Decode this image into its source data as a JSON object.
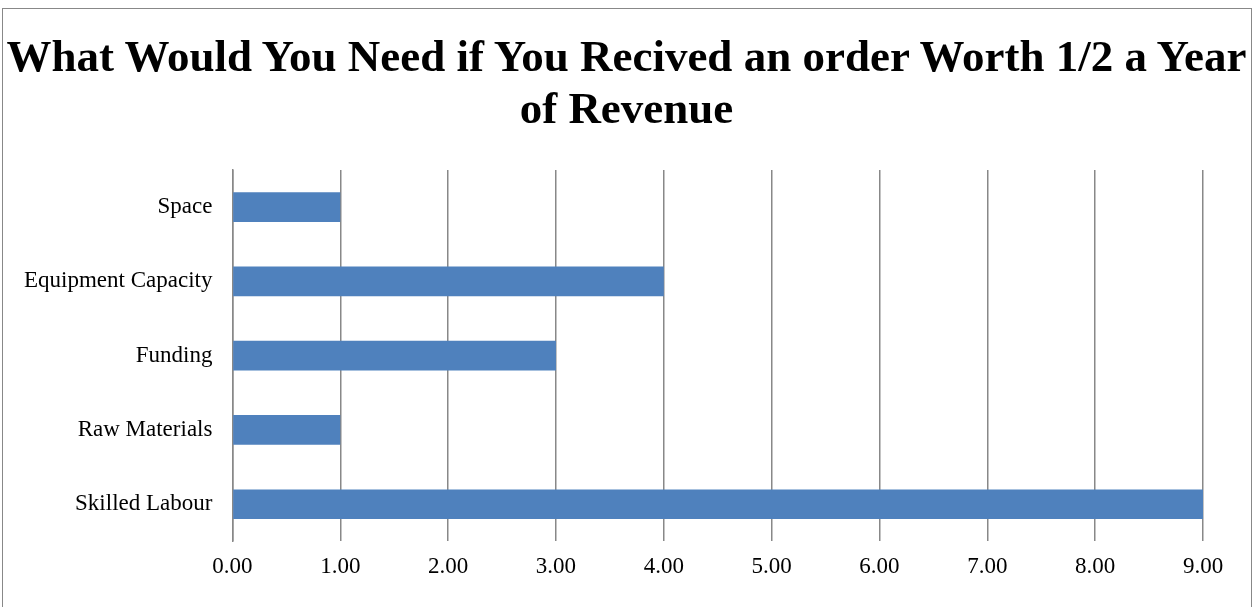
{
  "chart_data": {
    "type": "bar",
    "orientation": "horizontal",
    "title": "What Would You Need if You Recived an order Worth 1/2 a Year of Revenue",
    "categories": [
      "Space",
      "Equipment Capacity",
      "Funding",
      "Raw Materials",
      "Skilled Labour"
    ],
    "values": [
      1,
      4,
      3,
      1,
      9
    ],
    "color": "#4f81bd",
    "xlim": [
      0,
      9
    ],
    "xticks": [
      {
        "value": 0,
        "label": "0.00"
      },
      {
        "value": 1,
        "label": "1.00"
      },
      {
        "value": 2,
        "label": "2.00"
      },
      {
        "value": 3,
        "label": "3.00"
      },
      {
        "value": 4,
        "label": "4.00"
      },
      {
        "value": 5,
        "label": "5.00"
      },
      {
        "value": 6,
        "label": "6.00"
      },
      {
        "value": 7,
        "label": "7.00"
      },
      {
        "value": 8,
        "label": "8.00"
      },
      {
        "value": 9,
        "label": "9.00"
      }
    ],
    "grid": "x"
  }
}
